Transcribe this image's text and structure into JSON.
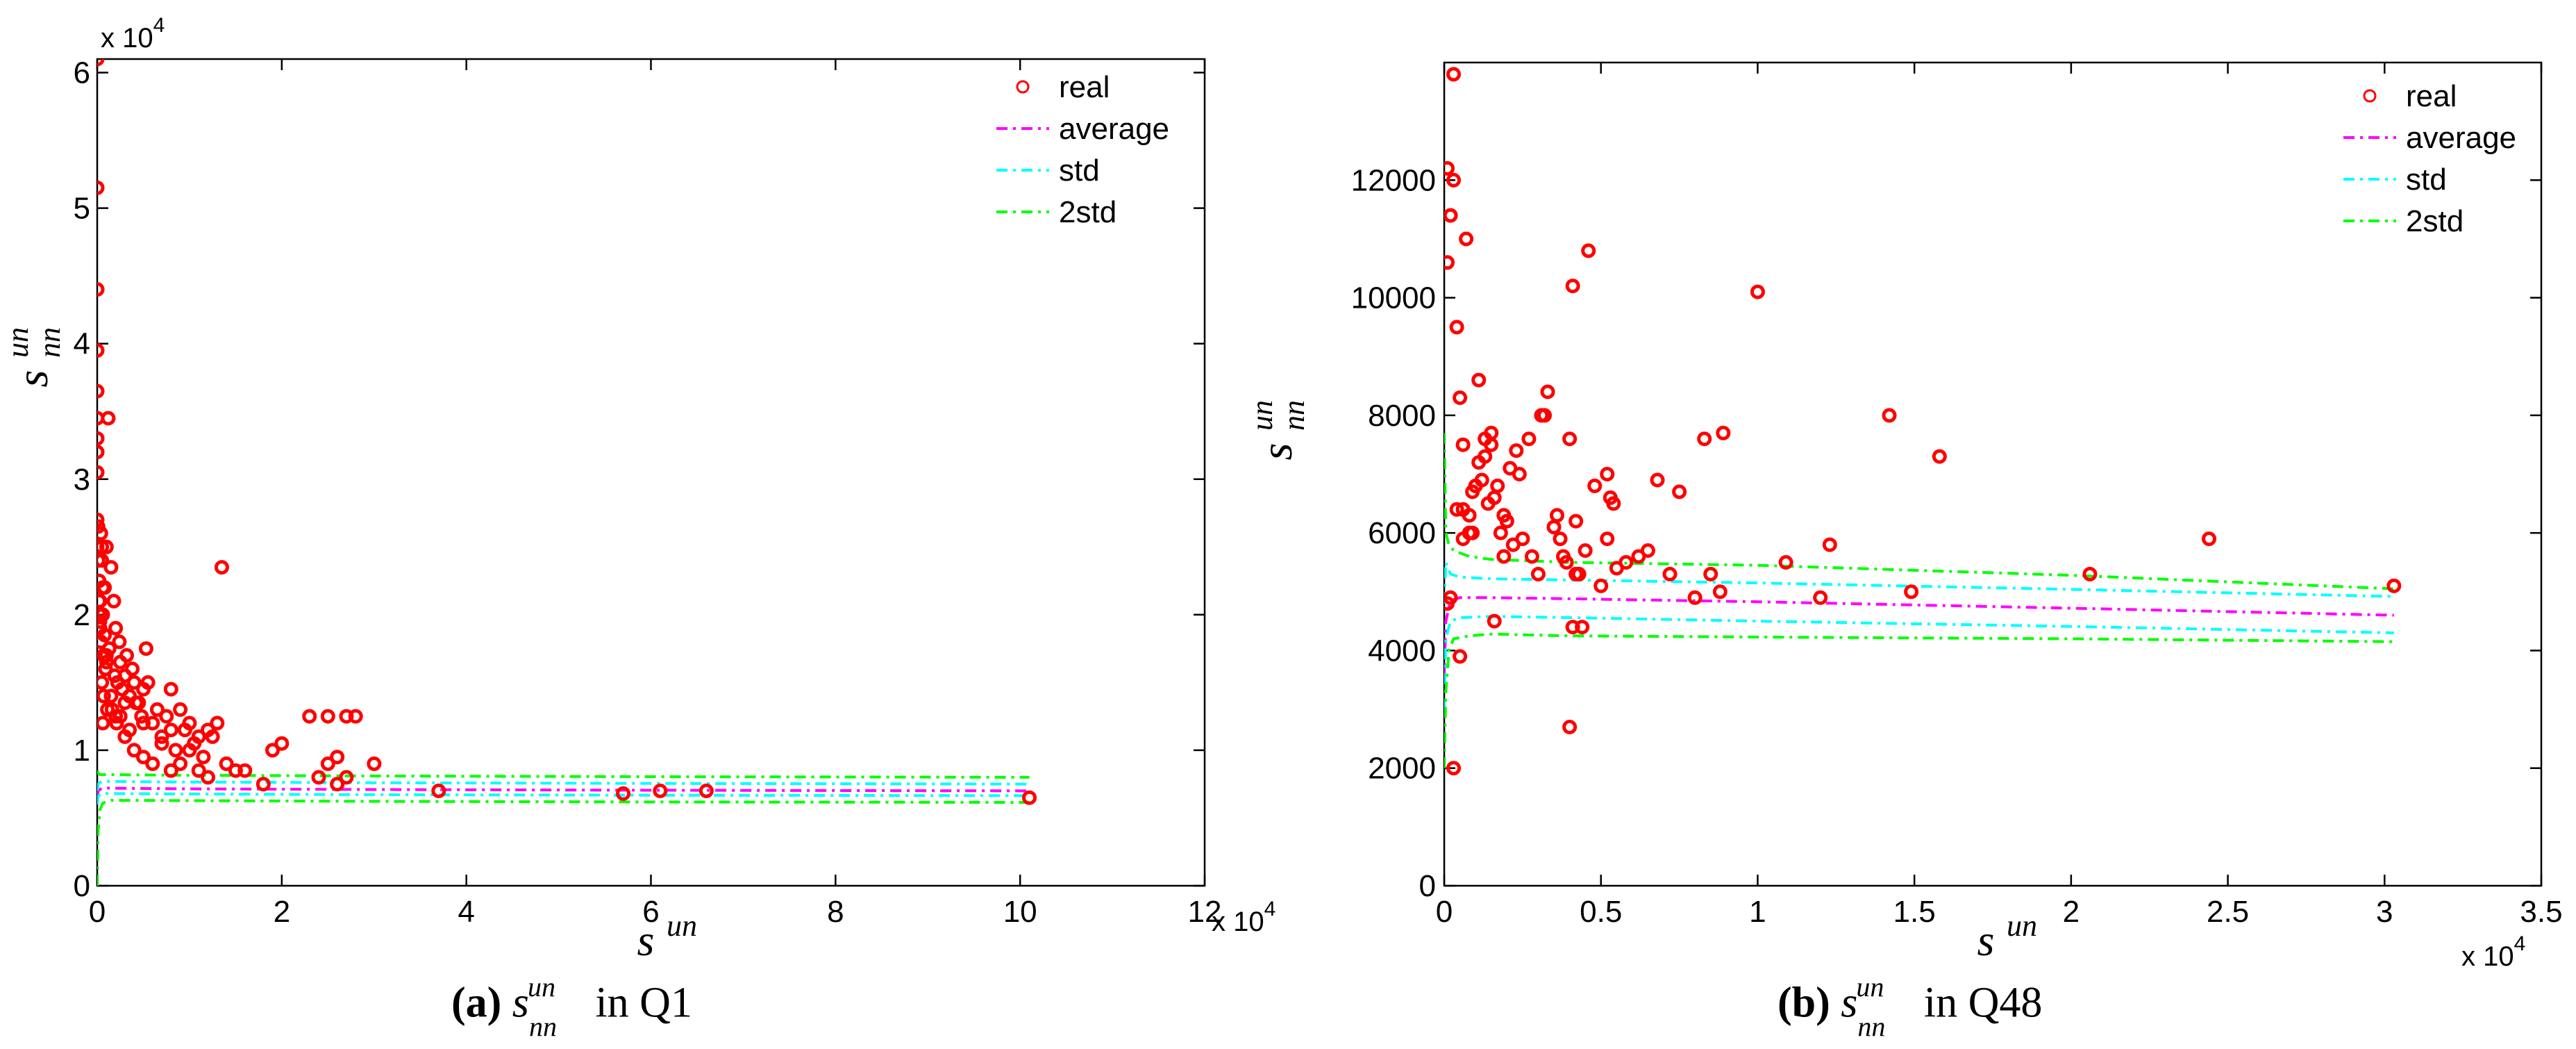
{
  "chart_data": [
    {
      "type": "scatter",
      "panel": "a",
      "caption": {
        "label": "(a)",
        "sym": "s",
        "sup": "un",
        "sub": "nn",
        "rest": "in Q1"
      },
      "xlabel": {
        "base": "s",
        "sup": "un"
      },
      "ylabel": {
        "base": "s",
        "sup": "un",
        "sub": "nn"
      },
      "x_exponent": "x 10",
      "x_exponent_power": "4",
      "y_exponent": "x 10",
      "y_exponent_power": "4",
      "xlim": [
        0,
        120000
      ],
      "ylim": [
        0,
        61000
      ],
      "xticks": [
        0,
        20000,
        40000,
        60000,
        80000,
        100000,
        120000
      ],
      "xtick_labels": [
        "0",
        "2",
        "4",
        "6",
        "8",
        "10",
        "12"
      ],
      "yticks": [
        0,
        10000,
        20000,
        30000,
        40000,
        50000,
        60000
      ],
      "ytick_labels": [
        "0",
        "1",
        "2",
        "3",
        "4",
        "5",
        "6"
      ],
      "legend_position": "top-right",
      "legend": [
        "real",
        "average",
        "std",
        "2std"
      ],
      "colors": {
        "real": "#ff0000",
        "average": "#ff00ff",
        "std": "#00ffff",
        "2std": "#00ff00"
      },
      "series": [
        {
          "name": "average",
          "style": "dashdot",
          "color": "#ff00ff",
          "x": [
            0,
            100,
            500,
            1500,
            4000,
            10000,
            30000,
            60000,
            101000
          ],
          "y": [
            6500,
            7000,
            7200,
            7200,
            7180,
            7150,
            7100,
            7050,
            7000
          ]
        },
        {
          "name": "std",
          "style": "dashdot",
          "color": "#00ffff",
          "x": [
            0,
            100,
            500,
            1500,
            4000,
            10000,
            30000,
            60000,
            101000
          ],
          "y": [
            6000,
            6600,
            6800,
            6800,
            6790,
            6770,
            6720,
            6680,
            6650
          ]
        },
        {
          "name": "std",
          "style": "dashdot",
          "color": "#00ffff",
          "x": [
            0,
            100,
            500,
            1500,
            4000,
            10000,
            30000,
            60000,
            101000
          ],
          "y": [
            7000,
            7500,
            7700,
            7700,
            7680,
            7650,
            7600,
            7550,
            7500
          ]
        },
        {
          "name": "2std",
          "style": "dashdot",
          "color": "#00ff00",
          "x": [
            0,
            100,
            300,
            600,
            1500,
            4000,
            10000,
            30000,
            60000,
            101000
          ],
          "y": [
            0,
            4000,
            5600,
            6100,
            6300,
            6300,
            6280,
            6230,
            6180,
            6150
          ]
        },
        {
          "name": "2std",
          "style": "dashdot",
          "color": "#00ff00",
          "x": [
            0,
            100,
            300,
            600,
            1500,
            4000,
            10000,
            30000,
            60000,
            101000
          ],
          "y": [
            8500,
            8300,
            8200,
            8200,
            8200,
            8180,
            8150,
            8100,
            8050,
            8000
          ]
        },
        {
          "name": "real",
          "style": "scatter",
          "color": "#ff0000",
          "x": [
            0,
            0,
            0,
            0,
            0,
            0,
            0,
            0,
            0,
            0,
            0,
            100,
            100,
            200,
            200,
            200,
            300,
            300,
            400,
            400,
            500,
            500,
            600,
            600,
            700,
            800,
            900,
            1000,
            1200,
            1500,
            1800,
            2000,
            2500,
            2200,
            3000,
            3500,
            4000,
            4500,
            5000,
            5500,
            6000,
            6500,
            7000,
            7500,
            8000,
            8500,
            9000,
            9500,
            10000,
            10500,
            11000,
            11500,
            12000,
            12500,
            13000,
            13500,
            2000,
            3000,
            4000,
            5000,
            5000,
            6000,
            7000,
            8000,
            8000,
            9000,
            10000,
            11000,
            12000,
            14000,
            15000,
            16000,
            18000,
            19000,
            20000,
            23000,
            24000,
            25000,
            26000,
            27000,
            28000,
            25000,
            26000,
            27000,
            30000,
            37000,
            57000,
            61000,
            66000,
            101000,
            1000,
            1500,
            2500,
            3000,
            3500,
            500,
            700,
            900,
            1100,
            1300,
            1600,
            1900,
            2100,
            2400,
            2700,
            3200,
            3800,
            4200,
            4800,
            5300,
            300,
            600,
            800,
            1000
          ],
          "y": [
            61000,
            51500,
            44000,
            39500,
            36500,
            34500,
            33000,
            32000,
            30500,
            27000,
            25000,
            26500,
            24000,
            22500,
            21000,
            20000,
            19500,
            19000,
            26000,
            18000,
            25000,
            24000,
            22000,
            20000,
            17000,
            18500,
            16000,
            16500,
            34500,
            23500,
            21000,
            19000,
            16500,
            15000,
            15500,
            14000,
            15000,
            13500,
            14500,
            15000,
            12000,
            13000,
            11000,
            12500,
            14500,
            10000,
            13000,
            11500,
            12000,
            10500,
            11000,
            9500,
            11500,
            11000,
            12000,
            23500,
            12500,
            11000,
            10000,
            9500,
            12000,
            9000,
            10500,
            11500,
            8500,
            9000,
            10000,
            8500,
            8000,
            9000,
            8500,
            8500,
            7500,
            10000,
            10500,
            12500,
            8000,
            12500,
            9500,
            12500,
            12500,
            9000,
            7500,
            8000,
            9000,
            7000,
            6800,
            7000,
            7000,
            6500,
            17000,
            14000,
            12500,
            13500,
            11500,
            15000,
            14000,
            16000,
            13000,
            17500,
            13000,
            15500,
            12000,
            18000,
            14500,
            17000,
            16000,
            13500,
            12500,
            17500,
            21000,
            12000,
            22000,
            25000
          ]
        }
      ]
    },
    {
      "type": "scatter",
      "panel": "b",
      "caption": {
        "label": "(b)",
        "sym": "s",
        "sup": "un",
        "sub": "nn",
        "rest": "in Q48"
      },
      "xlabel": {
        "base": "s",
        "sup": "un"
      },
      "ylabel": {
        "base": "s",
        "sup": "un",
        "sub": "nn"
      },
      "x_exponent": "x 10",
      "x_exponent_power": "4",
      "xlim": [
        0,
        35000
      ],
      "ylim": [
        0,
        14000
      ],
      "xticks": [
        0,
        5000,
        10000,
        15000,
        20000,
        25000,
        30000,
        35000
      ],
      "xtick_labels": [
        "0",
        "0.5",
        "1",
        "1.5",
        "2",
        "2.5",
        "3",
        "3.5"
      ],
      "yticks": [
        0,
        2000,
        4000,
        6000,
        8000,
        10000,
        12000
      ],
      "ytick_labels": [
        "0",
        "2000",
        "4000",
        "6000",
        "8000",
        "10000",
        "12000"
      ],
      "legend_position": "top-right",
      "legend": [
        "real",
        "average",
        "std",
        "2std"
      ],
      "colors": {
        "real": "#ff0000",
        "average": "#ff00ff",
        "std": "#00ffff",
        "2std": "#00ff00"
      },
      "series": [
        {
          "name": "average",
          "style": "dashdot",
          "color": "#ff00ff",
          "x": [
            0,
            50,
            200,
            500,
            1500,
            4000,
            10000,
            20000,
            30300
          ],
          "y": [
            3600,
            4500,
            4850,
            4900,
            4900,
            4880,
            4830,
            4720,
            4600
          ]
        },
        {
          "name": "std",
          "style": "dashdot",
          "color": "#00ffff",
          "x": [
            0,
            50,
            200,
            500,
            1500,
            4000,
            10000,
            20000,
            30300
          ],
          "y": [
            3000,
            4200,
            4500,
            4560,
            4580,
            4560,
            4500,
            4410,
            4300
          ]
        },
        {
          "name": "std",
          "style": "dashdot",
          "color": "#00ffff",
          "x": [
            0,
            50,
            200,
            500,
            1500,
            4000,
            10000,
            20000,
            30300
          ],
          "y": [
            4800,
            5500,
            5300,
            5250,
            5220,
            5200,
            5150,
            5040,
            4920
          ]
        },
        {
          "name": "2std",
          "style": "dashdot",
          "color": "#00ff00",
          "x": [
            0,
            50,
            150,
            300,
            800,
            1500,
            4000,
            10000,
            20000,
            30300
          ],
          "y": [
            2000,
            3300,
            4000,
            4200,
            4250,
            4280,
            4250,
            4230,
            4200,
            4150
          ]
        },
        {
          "name": "2std",
          "style": "dashdot",
          "color": "#00ff00",
          "x": [
            0,
            50,
            150,
            300,
            800,
            1500,
            4000,
            10000,
            20000,
            30300
          ],
          "y": [
            7700,
            6000,
            5800,
            5700,
            5600,
            5550,
            5500,
            5450,
            5280,
            5050
          ]
        },
        {
          "name": "real",
          "style": "scatter",
          "color": "#ff0000",
          "x": [
            300,
            100,
            100,
            200,
            200,
            300,
            400,
            500,
            600,
            600,
            800,
            600,
            900,
            1000,
            1100,
            1200,
            1300,
            1400,
            1500,
            1600,
            1700,
            1800,
            1900,
            1900,
            2000,
            2100,
            2200,
            2400,
            2500,
            2700,
            2800,
            3000,
            3200,
            3300,
            3500,
            3600,
            3700,
            3800,
            3900,
            4000,
            4100,
            4200,
            4300,
            4500,
            4600,
            4800,
            5000,
            5200,
            5300,
            5400,
            5500,
            5800,
            6200,
            6500,
            6800,
            7200,
            7500,
            8000,
            8300,
            8500,
            8800,
            8900,
            10000,
            10900,
            12000,
            12300,
            14200,
            14900,
            15800,
            20600,
            24400,
            30300,
            200,
            500,
            800,
            1300,
            1600,
            4000,
            4100,
            4200,
            5200,
            700,
            1100,
            1500,
            2300,
            3100,
            4400,
            300,
            100,
            400,
            900
          ],
          "y": [
            13800,
            12200,
            10600,
            11400,
            11400,
            12000,
            9500,
            8300,
            7500,
            6400,
            6300,
            5900,
            6000,
            6800,
            7200,
            6900,
            7600,
            6500,
            7700,
            6600,
            6800,
            6000,
            5600,
            6300,
            6200,
            7100,
            5800,
            7000,
            5900,
            7600,
            5600,
            5300,
            8000,
            8400,
            6100,
            6300,
            5900,
            5600,
            5500,
            7600,
            10200,
            6200,
            5300,
            5700,
            10800,
            6800,
            5100,
            5900,
            6600,
            6500,
            5400,
            5500,
            5600,
            5700,
            6900,
            5300,
            6700,
            4900,
            7600,
            5300,
            5000,
            7700,
            10100,
            5500,
            4900,
            5800,
            8000,
            5000,
            7300,
            5300,
            5900,
            5100,
            4900,
            3900,
            6000,
            7300,
            4500,
            2700,
            4400,
            5300,
            7000,
            11000,
            8600,
            7500,
            7400,
            8000,
            4400,
            2000,
            4800,
            6400,
            6700
          ]
        }
      ]
    }
  ]
}
